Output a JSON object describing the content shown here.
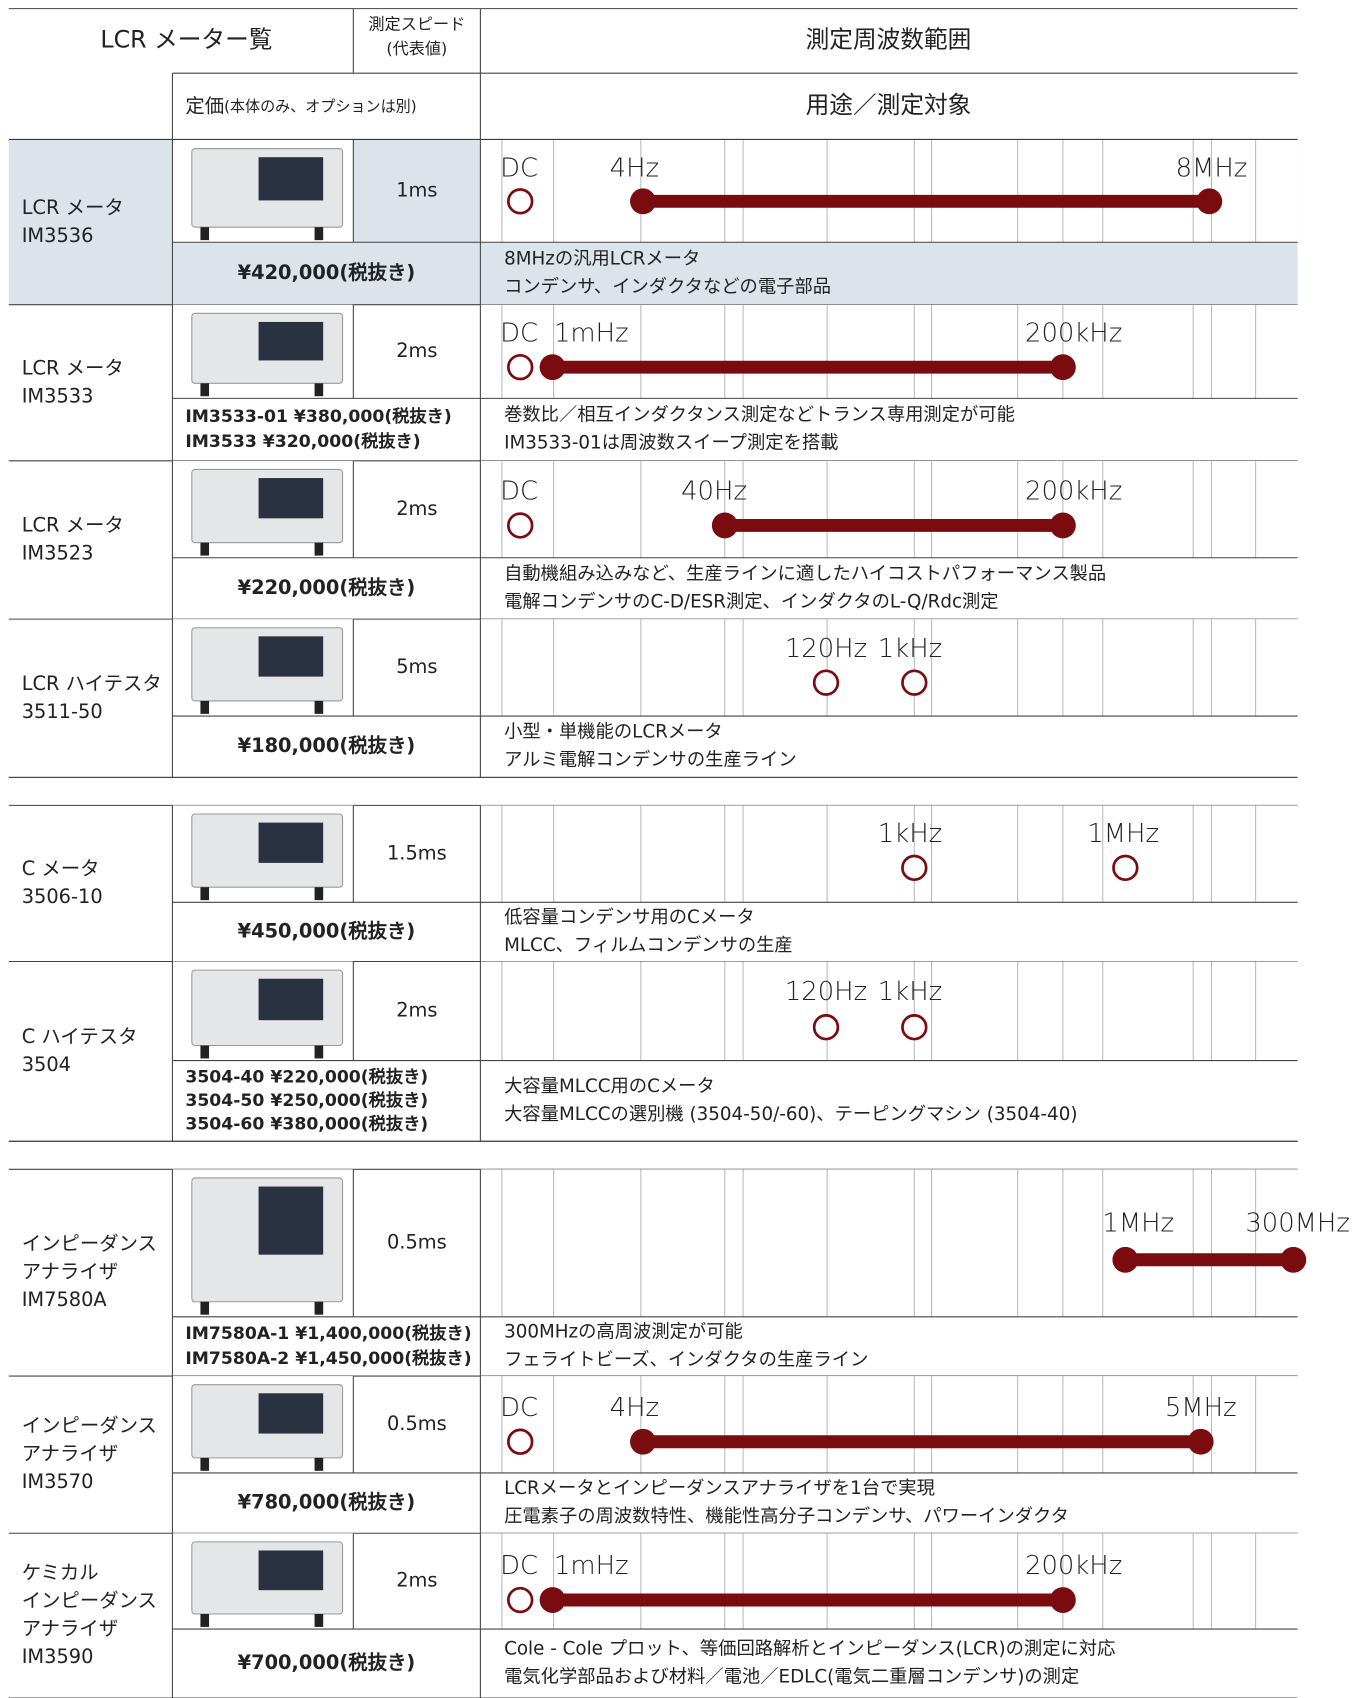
{
  "header": {
    "title": "LCR メーター覧",
    "speed": [
      "測定スピード",
      "(代表値)"
    ],
    "frequency": "測定周波数範囲",
    "price": "定価",
    "price_note": "(本体のみ、オプションは別)",
    "usage": "用途／測定対象"
  },
  "products": [
    {
      "name": [
        "LCR メータ",
        "IM3536"
      ],
      "speed": "1ms",
      "prices": [
        "¥420,000(税抜き)"
      ],
      "freq": [
        "DC",
        "4Hz",
        "8MHz"
      ],
      "description": [
        "8MHzの汎用LCRメータ",
        "コンデンサ、インダクタなどの電子部品"
      ]
    },
    {
      "name": [
        "LCR メータ",
        "IM3533"
      ],
      "speed": "2ms",
      "prices": [
        "IM3533-01 ¥380,000(税抜き)",
        "IM3533 ¥320,000(税抜き)"
      ],
      "freq": [
        "DC",
        "1mHz",
        "200kHz"
      ],
      "description": [
        "巻数比／相互インダクタンス測定などトランス専用測定が可能",
        "IM3533-01は周波数スイープ測定を搭載"
      ]
    },
    {
      "name": [
        "LCR メータ",
        "IM3523"
      ],
      "speed": "2ms",
      "prices": [
        "¥220,000(税抜き)"
      ],
      "freq": [
        "DC",
        "40Hz",
        "200kHz"
      ],
      "description": [
        "自動機組み込みなど、生産ラインに適したハイコストパフォーマンス製品",
        "電解コンデンサのC-D/ESR測定、インダクタのL-Q/Rdc測定"
      ]
    },
    {
      "name": [
        "LCR ハイテスタ",
        "3511-50"
      ],
      "speed": "5ms",
      "prices": [
        "¥180,000(税抜き)"
      ],
      "freq": [
        "120Hz",
        "1kHz"
      ],
      "description": [
        "小型・単機能のLCRメータ",
        "アルミ電解コンデンサの生産ライン"
      ]
    },
    {
      "name": [
        "C メータ",
        "3506-10"
      ],
      "speed": "1.5ms",
      "prices": [
        "¥450,000(税抜き)"
      ],
      "freq": [
        "1kHz",
        "1MHz"
      ],
      "description": [
        "低容量コンデンサ用のCメータ",
        "MLCC、フィルムコンデンサの生産"
      ]
    },
    {
      "name": [
        "C ハイテスタ",
        "3504"
      ],
      "speed": "2ms",
      "prices": [
        "3504-40 ¥220,000(税抜き)",
        "3504-50 ¥250,000(税抜き)",
        "3504-60 ¥380,000(税抜き)"
      ],
      "freq": [
        "120Hz",
        "1kHz"
      ],
      "description": [
        "大容量MLCC用のCメータ",
        "大容量MLCCの選別機 (3504-50/-60)、テーピングマシン (3504-40)"
      ]
    },
    {
      "name": [
        "インピーダンス",
        "アナライザ",
        "IM7580A"
      ],
      "speed": "0.5ms",
      "prices": [
        "IM7580A-1 ¥1,400,000(税抜き)",
        "IM7580A-2 ¥1,450,000(税抜き)"
      ],
      "freq": [
        "1MHz",
        "300MHz"
      ],
      "description": [
        "300MHzの高周波測定が可能",
        "フェライトビーズ、インダクタの生産ライン"
      ]
    },
    {
      "name": [
        "インピーダンス",
        "アナライザ",
        "IM3570"
      ],
      "speed": "0.5ms",
      "prices": [
        "¥780,000(税抜き)"
      ],
      "freq": [
        "DC",
        "4Hz",
        "5MHz"
      ],
      "description": [
        "LCRメータとインピーダンスアナライザを1台で実現",
        "圧電素子の周波数特性、機能性高分子コンデンサ、パワーインダクタ"
      ]
    },
    {
      "name": [
        "ケミカル",
        "インピーダンス",
        "アナライザ",
        "IM3590"
      ],
      "speed": "2ms",
      "prices": [
        "¥700,000(税抜き)"
      ],
      "freq": [
        "DC",
        "1mHz",
        "200kHz"
      ],
      "description": [
        "Cole - Cole プロット、等価回路解析とインピーダンス(LCR)の測定に対応",
        "電気化学部品および材料／電池／EDLC(電気二重層コンデンサ)の測定"
      ]
    }
  ]
}
